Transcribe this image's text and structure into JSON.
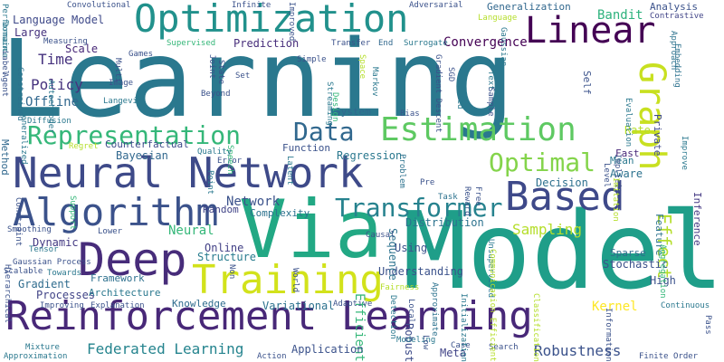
{
  "words": [
    {
      "text": "Learning",
      "color": "#2a788e"
    },
    {
      "text": "Model",
      "color": "#1f9e89"
    },
    {
      "text": "Via",
      "color": "#22a884"
    },
    {
      "text": "Optimization",
      "color": "#21918c"
    },
    {
      "text": "Reinforcement Learning",
      "color": "#482878"
    },
    {
      "text": "Neural Network",
      "color": "#3e4a89"
    },
    {
      "text": "Deep",
      "color": "#472c7a"
    },
    {
      "text": "Training",
      "color": "#d2e21b"
    },
    {
      "text": "Algorithm",
      "color": "#3b528b"
    },
    {
      "text": "Based",
      "color": "#3e4989"
    },
    {
      "text": "Linear",
      "color": "#440154"
    },
    {
      "text": "Graph",
      "color": "#c8e020"
    },
    {
      "text": "Representation",
      "color": "#35b779"
    },
    {
      "text": "Data",
      "color": "#31688e"
    },
    {
      "text": "Estimation",
      "color": "#5ec962"
    },
    {
      "text": "Transformer",
      "color": "#26828e"
    },
    {
      "text": "Optimal",
      "color": "#84d44b"
    },
    {
      "text": "Federated Learning",
      "color": "#25848e"
    },
    {
      "text": "Robustness",
      "color": "#3b528b"
    },
    {
      "text": "Kernel",
      "color": "#fde725"
    },
    {
      "text": "Sampling",
      "color": "#b5de2b"
    },
    {
      "text": "Effect",
      "color": "#b5de2b"
    },
    {
      "text": "Policy",
      "color": "#46337e"
    },
    {
      "text": "Language Model",
      "color": "#3e4989"
    },
    {
      "text": "Time",
      "color": "#46327e"
    },
    {
      "text": "Offline",
      "color": "#31688e"
    },
    {
      "text": "Bandit",
      "color": "#2db27d"
    },
    {
      "text": "Convergence",
      "color": "#440154"
    },
    {
      "text": "Generalization",
      "color": "#31688e"
    },
    {
      "text": "Structure",
      "color": "#287c8e"
    },
    {
      "text": "Variational",
      "color": "#2c728e"
    },
    {
      "text": "Understanding",
      "color": "#3b528b"
    },
    {
      "text": "Dynamic",
      "color": "#443a83"
    },
    {
      "text": "Neural",
      "color": "#35b779"
    },
    {
      "text": "Stochastic",
      "color": "#3b528b"
    },
    {
      "text": "Feature",
      "color": "#2c728e"
    },
    {
      "text": "Inference",
      "color": "#443983"
    },
    {
      "text": "Network",
      "color": "#3b528b"
    },
    {
      "text": "Regression",
      "color": "#2a788e"
    },
    {
      "text": "Decision",
      "color": "#2d708e"
    },
    {
      "text": "Gradient",
      "color": "#2f6c8e"
    },
    {
      "text": "Bayesian",
      "color": "#31688e"
    },
    {
      "text": "Method",
      "color": "#31688e"
    },
    {
      "text": "Prediction",
      "color": "#472d7b"
    },
    {
      "text": "Distribution",
      "color": "#2c728e"
    },
    {
      "text": "Sequence",
      "color": "#2c728e"
    },
    {
      "text": "Efficient",
      "color": "#35b779"
    },
    {
      "text": "Robust",
      "color": "#3e4c8a"
    },
    {
      "text": "High",
      "color": "#3b528b"
    },
    {
      "text": "Using",
      "color": "#3b528b"
    },
    {
      "text": "Online",
      "color": "#424086"
    },
    {
      "text": "Processes",
      "color": "#414487"
    },
    {
      "text": "Framework",
      "color": "#2d708e"
    },
    {
      "text": "System",
      "color": "#31688e"
    },
    {
      "text": "Application",
      "color": "#3b528b"
    },
    {
      "text": "Knowledge",
      "color": "#2f6c8e"
    },
    {
      "text": "Rate",
      "color": "#b5de2b"
    },
    {
      "text": "Aware",
      "color": "#2c728e"
    },
    {
      "text": "Error",
      "color": "#3b528b"
    },
    {
      "text": "Counterfactual",
      "color": "#3e4c8a"
    },
    {
      "text": "Architecture",
      "color": "#2a788e"
    },
    {
      "text": "Scale",
      "color": "#482878"
    },
    {
      "text": "Large",
      "color": "#46327e"
    },
    {
      "text": "Meta",
      "color": "#414487"
    },
    {
      "text": "Search",
      "color": "#3b528b"
    },
    {
      "text": "Continuous",
      "color": "#2a788e"
    },
    {
      "text": "Hierarchical",
      "color": "#3b528b"
    },
    {
      "text": "Private",
      "color": "#3e4989"
    },
    {
      "text": "Fast",
      "color": "#482878"
    },
    {
      "text": "Mean",
      "color": "#2a788e"
    },
    {
      "text": "Function",
      "color": "#3b528b"
    },
    {
      "text": "Complexity",
      "color": "#2c728e"
    },
    {
      "text": "Random",
      "color": "#414487"
    },
    {
      "text": "Evaluation",
      "color": "#2a788e"
    },
    {
      "text": "Self",
      "color": "#3b528b"
    },
    {
      "text": "Sparse",
      "color": "#2f6c8e"
    },
    {
      "text": "Approach",
      "color": "#2c728e"
    },
    {
      "text": "Approximate",
      "color": "#2c728e"
    },
    {
      "text": "Adaptive",
      "color": "#3b528b"
    },
    {
      "text": "Unsupervised",
      "color": "#2a788e"
    },
    {
      "text": "Embedding",
      "color": "#2c728e"
    },
    {
      "text": "Contrastive",
      "color": "#414487"
    },
    {
      "text": "Analysis",
      "color": "#3b528b"
    },
    {
      "text": "Image",
      "color": "#3b528b"
    },
    {
      "text": "Games",
      "color": "#3b528b"
    },
    {
      "text": "Supervised",
      "color": "#35b779"
    },
    {
      "text": "Transfer",
      "color": "#3b528b"
    },
    {
      "text": "End",
      "color": "#31688e"
    },
    {
      "text": "Surrogate",
      "color": "#2a788e"
    },
    {
      "text": "Gaussian",
      "color": "#2a788e"
    },
    {
      "text": "Autoencoder",
      "color": "#2a788e"
    },
    {
      "text": "Langevin",
      "color": "#2a788e"
    },
    {
      "text": "Beyond",
      "color": "#3b528b"
    },
    {
      "text": "Set",
      "color": "#3b528b"
    },
    {
      "text": "Streaming",
      "color": "#2a788e"
    },
    {
      "text": "Design",
      "color": "#35b779"
    },
    {
      "text": "Bias",
      "color": "#3b528b"
    },
    {
      "text": "Markov",
      "color": "#2a788e"
    },
    {
      "text": "Latent",
      "color": "#2a788e"
    },
    {
      "text": "Speech",
      "color": "#35b779"
    },
    {
      "text": "Quality",
      "color": "#2a788e"
    },
    {
      "text": "Problem",
      "color": "#2c728e"
    },
    {
      "text": "Pre",
      "color": "#3b528b"
    },
    {
      "text": "Free",
      "color": "#3b528b"
    },
    {
      "text": "Task",
      "color": "#2c728e"
    },
    {
      "text": "Causal",
      "color": "#3b528b"
    },
    {
      "text": "Lower",
      "color": "#3b528b"
    },
    {
      "text": "Non",
      "color": "#3b528b"
    },
    {
      "text": "World",
      "color": "#3b528b"
    },
    {
      "text": "Modeling",
      "color": "#2a788e"
    },
    {
      "text": "Detection",
      "color": "#2a788e"
    },
    {
      "text": "Local",
      "color": "#3b528b"
    },
    {
      "text": "Low",
      "color": "#3b528b"
    },
    {
      "text": "Case",
      "color": "#3b528b"
    },
    {
      "text": "Initialization",
      "color": "#2a788e"
    },
    {
      "text": "Information",
      "color": "#3b528b"
    },
    {
      "text": "Finite",
      "color": "#3b528b"
    },
    {
      "text": "Order",
      "color": "#3b528b"
    },
    {
      "text": "Pass",
      "color": "#3b528b"
    },
    {
      "text": "Action",
      "color": "#3b528b"
    },
    {
      "text": "Mixture",
      "color": "#2a788e"
    },
    {
      "text": "Approximation",
      "color": "#2a788e"
    },
    {
      "text": "Improving",
      "color": "#3b528b"
    },
    {
      "text": "Explanation",
      "color": "#3b528b"
    },
    {
      "text": "Towards",
      "color": "#2a788e"
    },
    {
      "text": "Scalable",
      "color": "#3b528b"
    },
    {
      "text": "Gaussian Process",
      "color": "#3b528b"
    },
    {
      "text": "Tensor",
      "color": "#2a788e"
    },
    {
      "text": "Smoothing",
      "color": "#3b528b"
    },
    {
      "text": "Constraint",
      "color": "#3b528b"
    },
    {
      "text": "Support",
      "color": "#35b779"
    },
    {
      "text": "Regret",
      "color": "#b5de2b"
    },
    {
      "text": "Diffusion",
      "color": "#2a788e"
    },
    {
      "text": "Generalized",
      "color": "#2a788e"
    },
    {
      "text": "Constrained",
      "color": "#2c728e"
    },
    {
      "text": "Agent",
      "color": "#3b528b"
    },
    {
      "text": "Label",
      "color": "#3b528b"
    },
    {
      "text": "Performance",
      "color": "#2a788e"
    },
    {
      "text": "Domain",
      "color": "#2a788e"
    },
    {
      "text": "Convolutional",
      "color": "#3b528b"
    },
    {
      "text": "Measuring",
      "color": "#3b528b"
    },
    {
      "text": "Multi",
      "color": "#3b528b"
    },
    {
      "text": "Joint",
      "color": "#3b528b"
    },
    {
      "text": "State",
      "color": "#3b528b"
    },
    {
      "text": "Infinite",
      "color": "#3b528b"
    },
    {
      "text": "Improved",
      "color": "#3b528b"
    },
    {
      "text": "Adversarial",
      "color": "#3b528b"
    },
    {
      "text": "Simple",
      "color": "#3b528b"
    },
    {
      "text": "Space",
      "color": "#b5de2b"
    },
    {
      "text": "Gradient Descent",
      "color": "#3b528b"
    },
    {
      "text": "SGD",
      "color": "#3b528b"
    },
    {
      "text": "Text",
      "color": "#2a788e"
    },
    {
      "text": "Guided",
      "color": "#2a788e"
    },
    {
      "text": "Sample",
      "color": "#3b528b"
    },
    {
      "text": "Language",
      "color": "#b5de2b"
    },
    {
      "text": "Fairness",
      "color": "#b5de2b"
    },
    {
      "text": "Reward",
      "color": "#3b528b"
    },
    {
      "text": "Communication Efficient",
      "color": "#b5de2b"
    },
    {
      "text": "Point",
      "color": "#2a788e"
    },
    {
      "text": "Classification",
      "color": "#b5de2b"
    },
    {
      "text": "Implicit",
      "color": "#3b528b"
    },
    {
      "text": "Level",
      "color": "#3b528b"
    },
    {
      "text": "Imitation",
      "color": "#b5de2b"
    },
    {
      "text": "Improve",
      "color": "#2a788e"
    },
    {
      "text": "Aggregation",
      "color": "#35b779"
    }
  ]
}
